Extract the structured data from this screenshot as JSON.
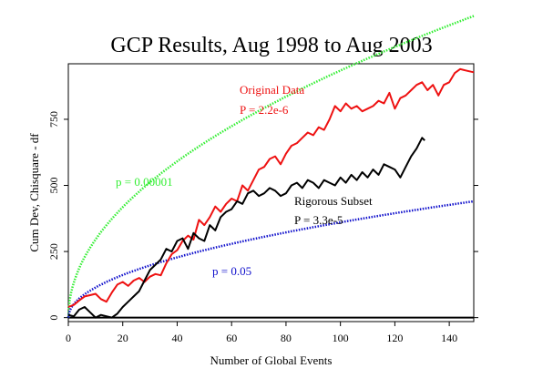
{
  "chart_data": {
    "type": "line",
    "title": "GCP Results, Aug 1998 to Aug 2003",
    "xlabel": "Number of Global Events",
    "ylabel": "Cum Dev, Chisquare - df",
    "xlim": [
      0,
      149
    ],
    "ylim": [
      -15,
      960
    ],
    "xticks": [
      0,
      20,
      40,
      60,
      80,
      100,
      120,
      140
    ],
    "yticks": [
      0,
      250,
      500,
      750
    ],
    "grid": false,
    "colors": {
      "red": "#ee1111",
      "black": "#000000",
      "green": "#33ee33",
      "blue": "#1111cc"
    },
    "reference_lines": [
      {
        "label": "p = 0.00001",
        "color": "#33ee33",
        "style": "dotted",
        "model": "z*sqrt(2*x*df)",
        "z": 4.265,
        "df_per_event": 240
      },
      {
        "label": "p = 0.05",
        "color": "#1111cc",
        "style": "dotted",
        "model": "z*sqrt(2*x*df)",
        "z": 1.645,
        "df_per_event": 240
      }
    ],
    "series": [
      {
        "color": "#ee1111",
        "annotation": [
          "Original Data",
          "P = 2.2e-6"
        ],
        "x": [
          0,
          2,
          4,
          6,
          8,
          10,
          12,
          14,
          16,
          18,
          20,
          22,
          24,
          26,
          28,
          30,
          32,
          34,
          36,
          38,
          40,
          42,
          44,
          46,
          48,
          50,
          52,
          54,
          56,
          58,
          60,
          62,
          64,
          66,
          68,
          70,
          72,
          74,
          76,
          78,
          80,
          82,
          84,
          86,
          88,
          90,
          92,
          94,
          96,
          98,
          100,
          102,
          104,
          106,
          108,
          110,
          112,
          114,
          116,
          118,
          120,
          122,
          124,
          126,
          128,
          130,
          132,
          134,
          136,
          138,
          140,
          142,
          144,
          146,
          148,
          149
        ],
        "values": [
          40,
          48,
          65,
          80,
          85,
          90,
          70,
          60,
          95,
          125,
          135,
          120,
          140,
          150,
          135,
          155,
          165,
          160,
          205,
          240,
          255,
          290,
          310,
          295,
          370,
          350,
          380,
          420,
          400,
          430,
          450,
          440,
          500,
          480,
          520,
          560,
          570,
          600,
          610,
          580,
          620,
          650,
          660,
          680,
          700,
          690,
          720,
          710,
          750,
          800,
          780,
          810,
          790,
          800,
          780,
          790,
          800,
          820,
          810,
          850,
          790,
          830,
          840,
          860,
          880,
          890,
          860,
          880,
          840,
          880,
          890,
          925,
          940,
          935,
          930,
          928
        ]
      },
      {
        "color": "#000000",
        "annotation": [
          "Rigorous Subset",
          "P = 3.3e-5"
        ],
        "x": [
          0,
          2,
          4,
          6,
          8,
          10,
          12,
          14,
          16,
          18,
          20,
          22,
          24,
          26,
          28,
          30,
          32,
          34,
          36,
          38,
          40,
          42,
          44,
          46,
          48,
          50,
          52,
          54,
          56,
          58,
          60,
          62,
          64,
          66,
          68,
          70,
          72,
          74,
          76,
          78,
          80,
          82,
          84,
          86,
          88,
          90,
          92,
          94,
          96,
          98,
          100,
          102,
          104,
          106,
          108,
          110,
          112,
          114,
          116,
          118,
          120,
          122,
          124,
          126,
          128,
          130,
          131
        ],
        "values": [
          10,
          5,
          30,
          40,
          20,
          0,
          10,
          5,
          0,
          15,
          40,
          60,
          80,
          100,
          140,
          180,
          200,
          220,
          260,
          250,
          290,
          300,
          260,
          320,
          300,
          290,
          350,
          330,
          380,
          400,
          410,
          440,
          430,
          470,
          480,
          460,
          470,
          490,
          480,
          460,
          470,
          500,
          510,
          490,
          520,
          510,
          490,
          520,
          510,
          500,
          530,
          510,
          540,
          520,
          550,
          530,
          560,
          540,
          580,
          570,
          560,
          530,
          570,
          610,
          640,
          680,
          670
        ]
      }
    ],
    "annotations": [
      {
        "text": "p = 0.00001",
        "color": "#33ee33"
      },
      {
        "text": "p = 0.05",
        "color": "#1111cc"
      }
    ]
  }
}
